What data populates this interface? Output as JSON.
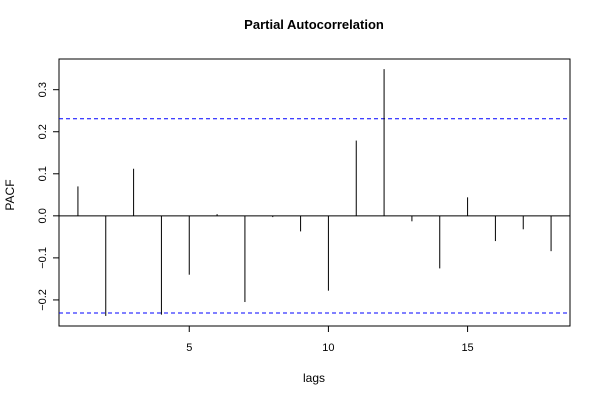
{
  "chart_data": {
    "type": "bar",
    "title": "Partial Autocorrelation",
    "xlabel": "lags",
    "ylabel": "PACF",
    "x": [
      1,
      2,
      3,
      4,
      5,
      6,
      7,
      8,
      9,
      10,
      11,
      12,
      13,
      14,
      15,
      16,
      17,
      18
    ],
    "values": [
      0.07,
      -0.238,
      0.112,
      -0.235,
      -0.14,
      0.004,
      -0.205,
      -0.003,
      -0.037,
      -0.178,
      0.179,
      0.349,
      -0.013,
      -0.125,
      0.044,
      -0.06,
      -0.032,
      -0.084
    ],
    "xlim": [
      0.32,
      18.68
    ],
    "ylim": [
      -0.262,
      0.373
    ],
    "x_ticks": [
      5,
      10,
      15
    ],
    "x_tick_labels": [
      "5",
      "10",
      "15"
    ],
    "y_ticks": [
      -0.2,
      -0.1,
      0.0,
      0.1,
      0.2,
      0.3
    ],
    "y_tick_labels": [
      "−0.2",
      "−0.1",
      "0.0",
      "0.1",
      "0.2",
      "0.3"
    ],
    "confidence_bounds": [
      0.231,
      -0.231
    ],
    "confidence_color": "#0000ff",
    "bar_color": "#000000",
    "grid": false
  }
}
